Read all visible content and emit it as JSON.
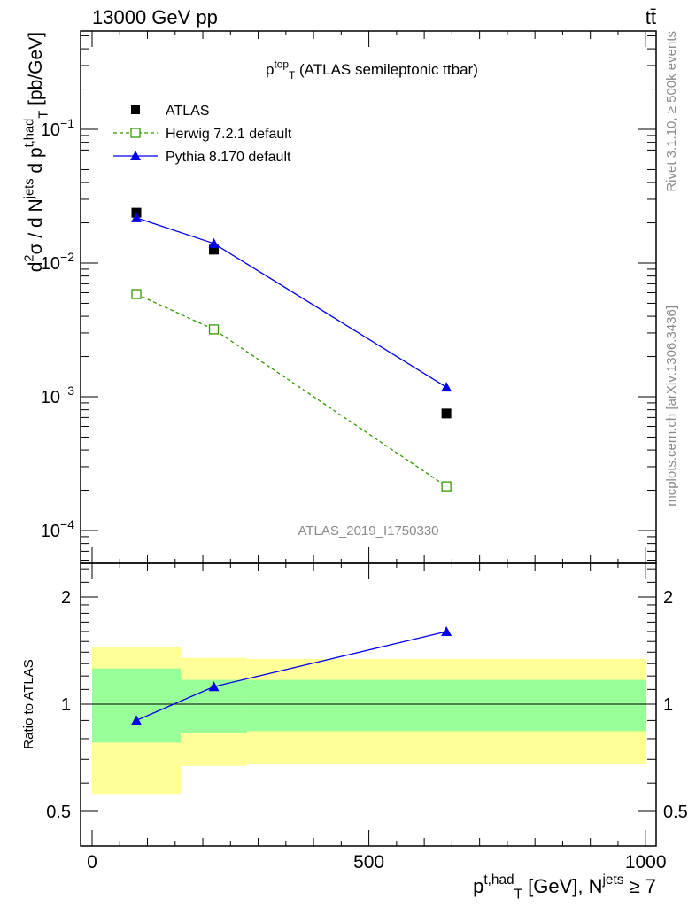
{
  "header": {
    "left": "13000 GeV pp",
    "right": "tt̄"
  },
  "side_text": {
    "rivet": "Rivet 3.1.10, ≥ 500k events",
    "mcplots": "mcplots.cern.ch [arXiv:1306.3436]"
  },
  "watermark": "ATLAS_2019_I1750330",
  "colors": {
    "atlas": "#000000",
    "herwig": "#339900",
    "pythia": "#0000ee",
    "band_inner": "#99ff99",
    "band_outer": "#ffff99"
  },
  "chart_data": [
    {
      "type": "line",
      "panel": "main",
      "title_parts": [
        {
          "t": "p",
          "s": ""
        },
        {
          "t": "top",
          "s": "sup"
        },
        {
          "t": "T",
          "s": "sub"
        },
        {
          "t": " (ATLAS semileptonic ttbar)",
          "s": ""
        }
      ],
      "ylabel_parts": [
        {
          "t": "d",
          "s": ""
        },
        {
          "t": "2",
          "s": "sup"
        },
        {
          "t": "σ / d N",
          "s": ""
        },
        {
          "t": "jets",
          "s": "sup"
        },
        {
          "t": " d p",
          "s": ""
        },
        {
          "t": "t,had",
          "s": "sup"
        },
        {
          "t": "T",
          "s": "sub"
        },
        {
          "t": " [pb/GeV]",
          "s": ""
        }
      ],
      "yscale": "log",
      "ylim": [
        5.7e-05,
        0.54
      ],
      "xlim": [
        -20,
        1020
      ],
      "ytick_exponents": [
        -1,
        -2,
        -3,
        -4
      ],
      "legend_placement": "top-left",
      "x": [
        80,
        220,
        640
      ],
      "series": [
        {
          "name": "ATLAS",
          "marker": "square",
          "values": [
            0.0238,
            0.0126,
            0.00075
          ]
        },
        {
          "name": "Herwig 7.2.1 default",
          "marker": "open-square",
          "line": "dashed",
          "values": [
            0.00586,
            0.00319,
            0.000214
          ]
        },
        {
          "name": "Pythia 8.170 default",
          "marker": "triangle",
          "line": "solid",
          "values": [
            0.0218,
            0.014,
            0.00118
          ]
        }
      ]
    },
    {
      "type": "line",
      "panel": "ratio",
      "ylabel": "Ratio to ATLAS",
      "yscale": "log",
      "ylim": [
        0.4,
        2.5
      ],
      "yticks": [
        0.5,
        1,
        2
      ],
      "ytick_labels": [
        "0.5",
        "1",
        "2"
      ],
      "xlim": [
        -20,
        1020
      ],
      "xticks": [
        0,
        500,
        1000
      ],
      "xtick_labels": [
        "0",
        "500",
        "1000"
      ],
      "xlabel_parts": [
        {
          "t": "p",
          "s": ""
        },
        {
          "t": "t,had",
          "s": "sup"
        },
        {
          "t": "T",
          "s": "sub"
        },
        {
          "t": " [GeV], N",
          "s": ""
        },
        {
          "t": "jets",
          "s": "sup"
        },
        {
          "t": " ≥ 7",
          "s": ""
        }
      ],
      "bins": [
        [
          0,
          160
        ],
        [
          160,
          280
        ],
        [
          280,
          1000
        ]
      ],
      "band_inner": [
        [
          0.78,
          1.26
        ],
        [
          0.83,
          1.17
        ],
        [
          0.84,
          1.17
        ]
      ],
      "band_outer": [
        [
          0.56,
          1.45
        ],
        [
          0.67,
          1.35
        ],
        [
          0.68,
          1.34
        ]
      ],
      "x": [
        80,
        220,
        640
      ],
      "series": [
        {
          "name": "Pythia 8.170 default",
          "values": [
            0.9,
            1.12,
            1.6
          ],
          "errors": [
            0.01,
            0.02,
            0.04
          ]
        }
      ]
    }
  ]
}
